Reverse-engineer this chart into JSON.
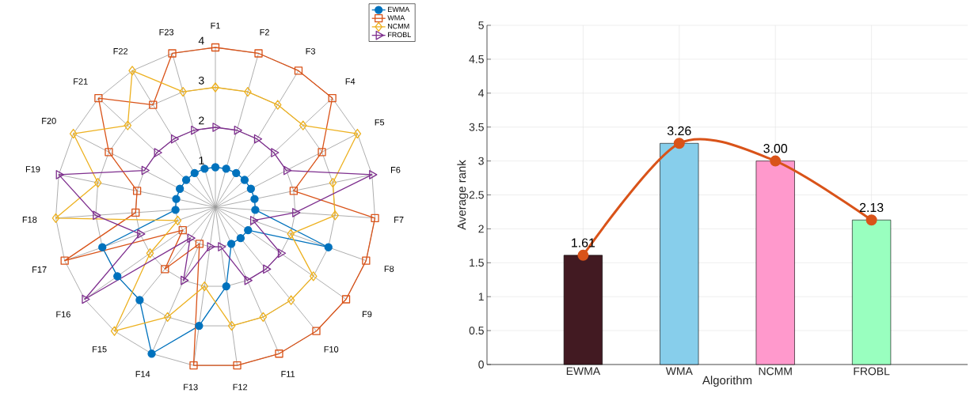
{
  "chart_data": [
    {
      "type": "radar",
      "categories": [
        "F1",
        "F2",
        "F3",
        "F4",
        "F5",
        "F6",
        "F7",
        "F8",
        "F9",
        "F10",
        "F11",
        "F12",
        "F13",
        "F14",
        "F15",
        "F16",
        "F17",
        "F18",
        "F19",
        "F20",
        "F21",
        "F22",
        "F23"
      ],
      "ylim": [
        0,
        4
      ],
      "yticks": [
        1,
        2,
        3,
        4
      ],
      "grid": true,
      "legend": "top right",
      "line_style": "solid",
      "series": [
        {
          "name": "EWMA",
          "color": "#0072bd",
          "marker": "circle",
          "values": [
            1,
            1,
            1,
            1,
            1,
            1,
            1,
            3,
            1,
            1,
            1,
            2,
            3,
            4,
            3,
            3,
            3,
            1,
            1,
            1,
            1,
            1,
            1
          ]
        },
        {
          "name": "WMA",
          "color": "#d95319",
          "marker": "square",
          "values": [
            4,
            4,
            4,
            4,
            3,
            2,
            4,
            4,
            4,
            4,
            4,
            4,
            4,
            1,
            2,
            1,
            4,
            2,
            2,
            3,
            4,
            3,
            4
          ]
        },
        {
          "name": "NCMM",
          "color": "#edb120",
          "marker": "diamond",
          "values": [
            3,
            3,
            3,
            3,
            4,
            3,
            3,
            2,
            3,
            3,
            3,
            3,
            2,
            3,
            4,
            2,
            1,
            4,
            3,
            4,
            3,
            4,
            3
          ]
        },
        {
          "name": "FROBL",
          "color": "#7e2f8e",
          "marker": "triangle",
          "values": [
            2,
            2,
            2,
            2,
            2,
            4,
            2,
            1,
            2,
            2,
            2,
            1,
            1,
            2,
            1,
            4,
            2,
            3,
            4,
            2,
            2,
            2,
            2
          ]
        }
      ]
    },
    {
      "type": "bar",
      "categories": [
        "EWMA",
        "WMA",
        "NCMM",
        "FROBL"
      ],
      "xlabel": "Algorithm",
      "ylabel": "Average rank",
      "ylim": [
        0,
        5
      ],
      "yticks": [
        0,
        0.5,
        1,
        1.5,
        2,
        2.5,
        3,
        3.5,
        4,
        4.5,
        5
      ],
      "grid": true,
      "series": [
        {
          "type": "bar",
          "colors": [
            "#421a22",
            "#87ceeb",
            "#ff99cc",
            "#99ffbf"
          ],
          "values": [
            1.61,
            3.26,
            3.0,
            2.13
          ],
          "value_labels": [
            "1.61",
            "3.26",
            "3.00",
            "2.13"
          ]
        },
        {
          "type": "line",
          "color": "#d95319",
          "marker": "circle",
          "values": [
            1.61,
            3.26,
            3.0,
            2.13
          ]
        }
      ]
    }
  ]
}
